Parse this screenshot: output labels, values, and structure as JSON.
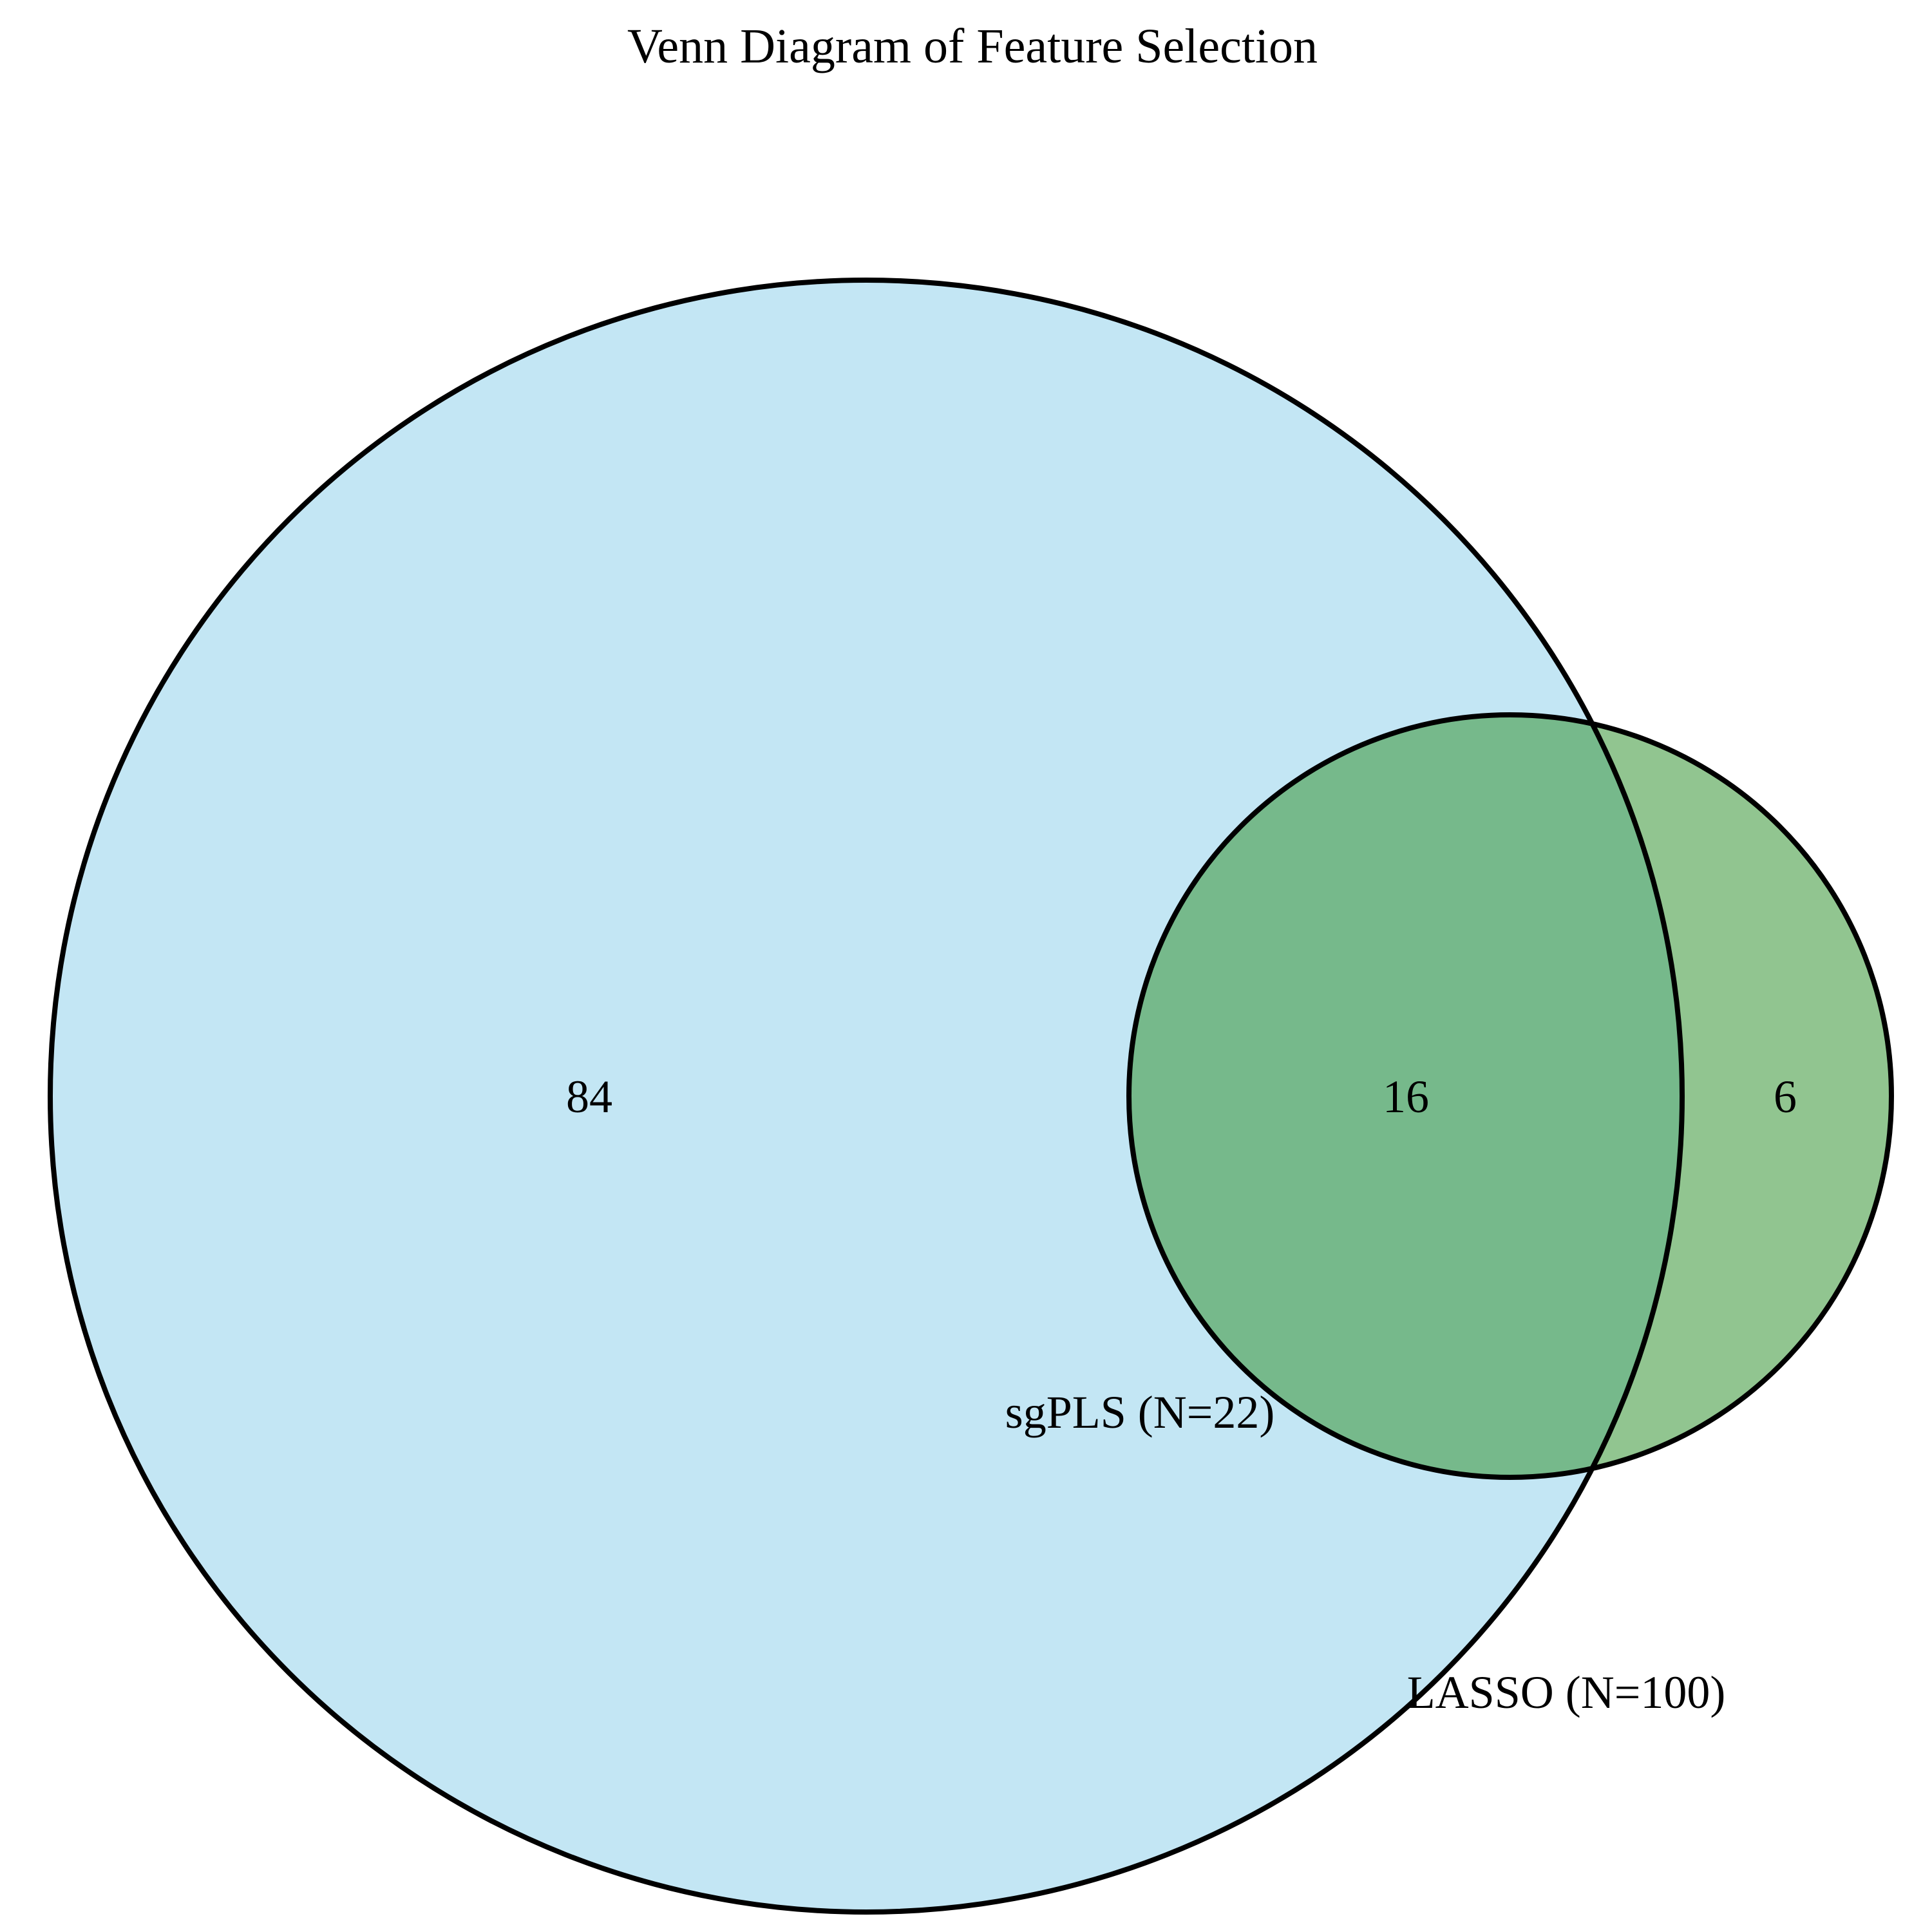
{
  "title": "Venn Diagram of Feature Selection",
  "sets": {
    "big": {
      "label": "LASSO (N=100)",
      "color": "#87CEEB"
    },
    "small": {
      "label": "sgPLS (N=22)",
      "color": "#2E8B2E"
    }
  },
  "regions": {
    "big_only": "84",
    "both": "16",
    "small_only": "6"
  },
  "colors": {
    "big_only_fill": "#C3E6F4",
    "overlap_fill": "#76B98B",
    "small_only_fill": "#91C590",
    "outline": "#000000"
  }
}
